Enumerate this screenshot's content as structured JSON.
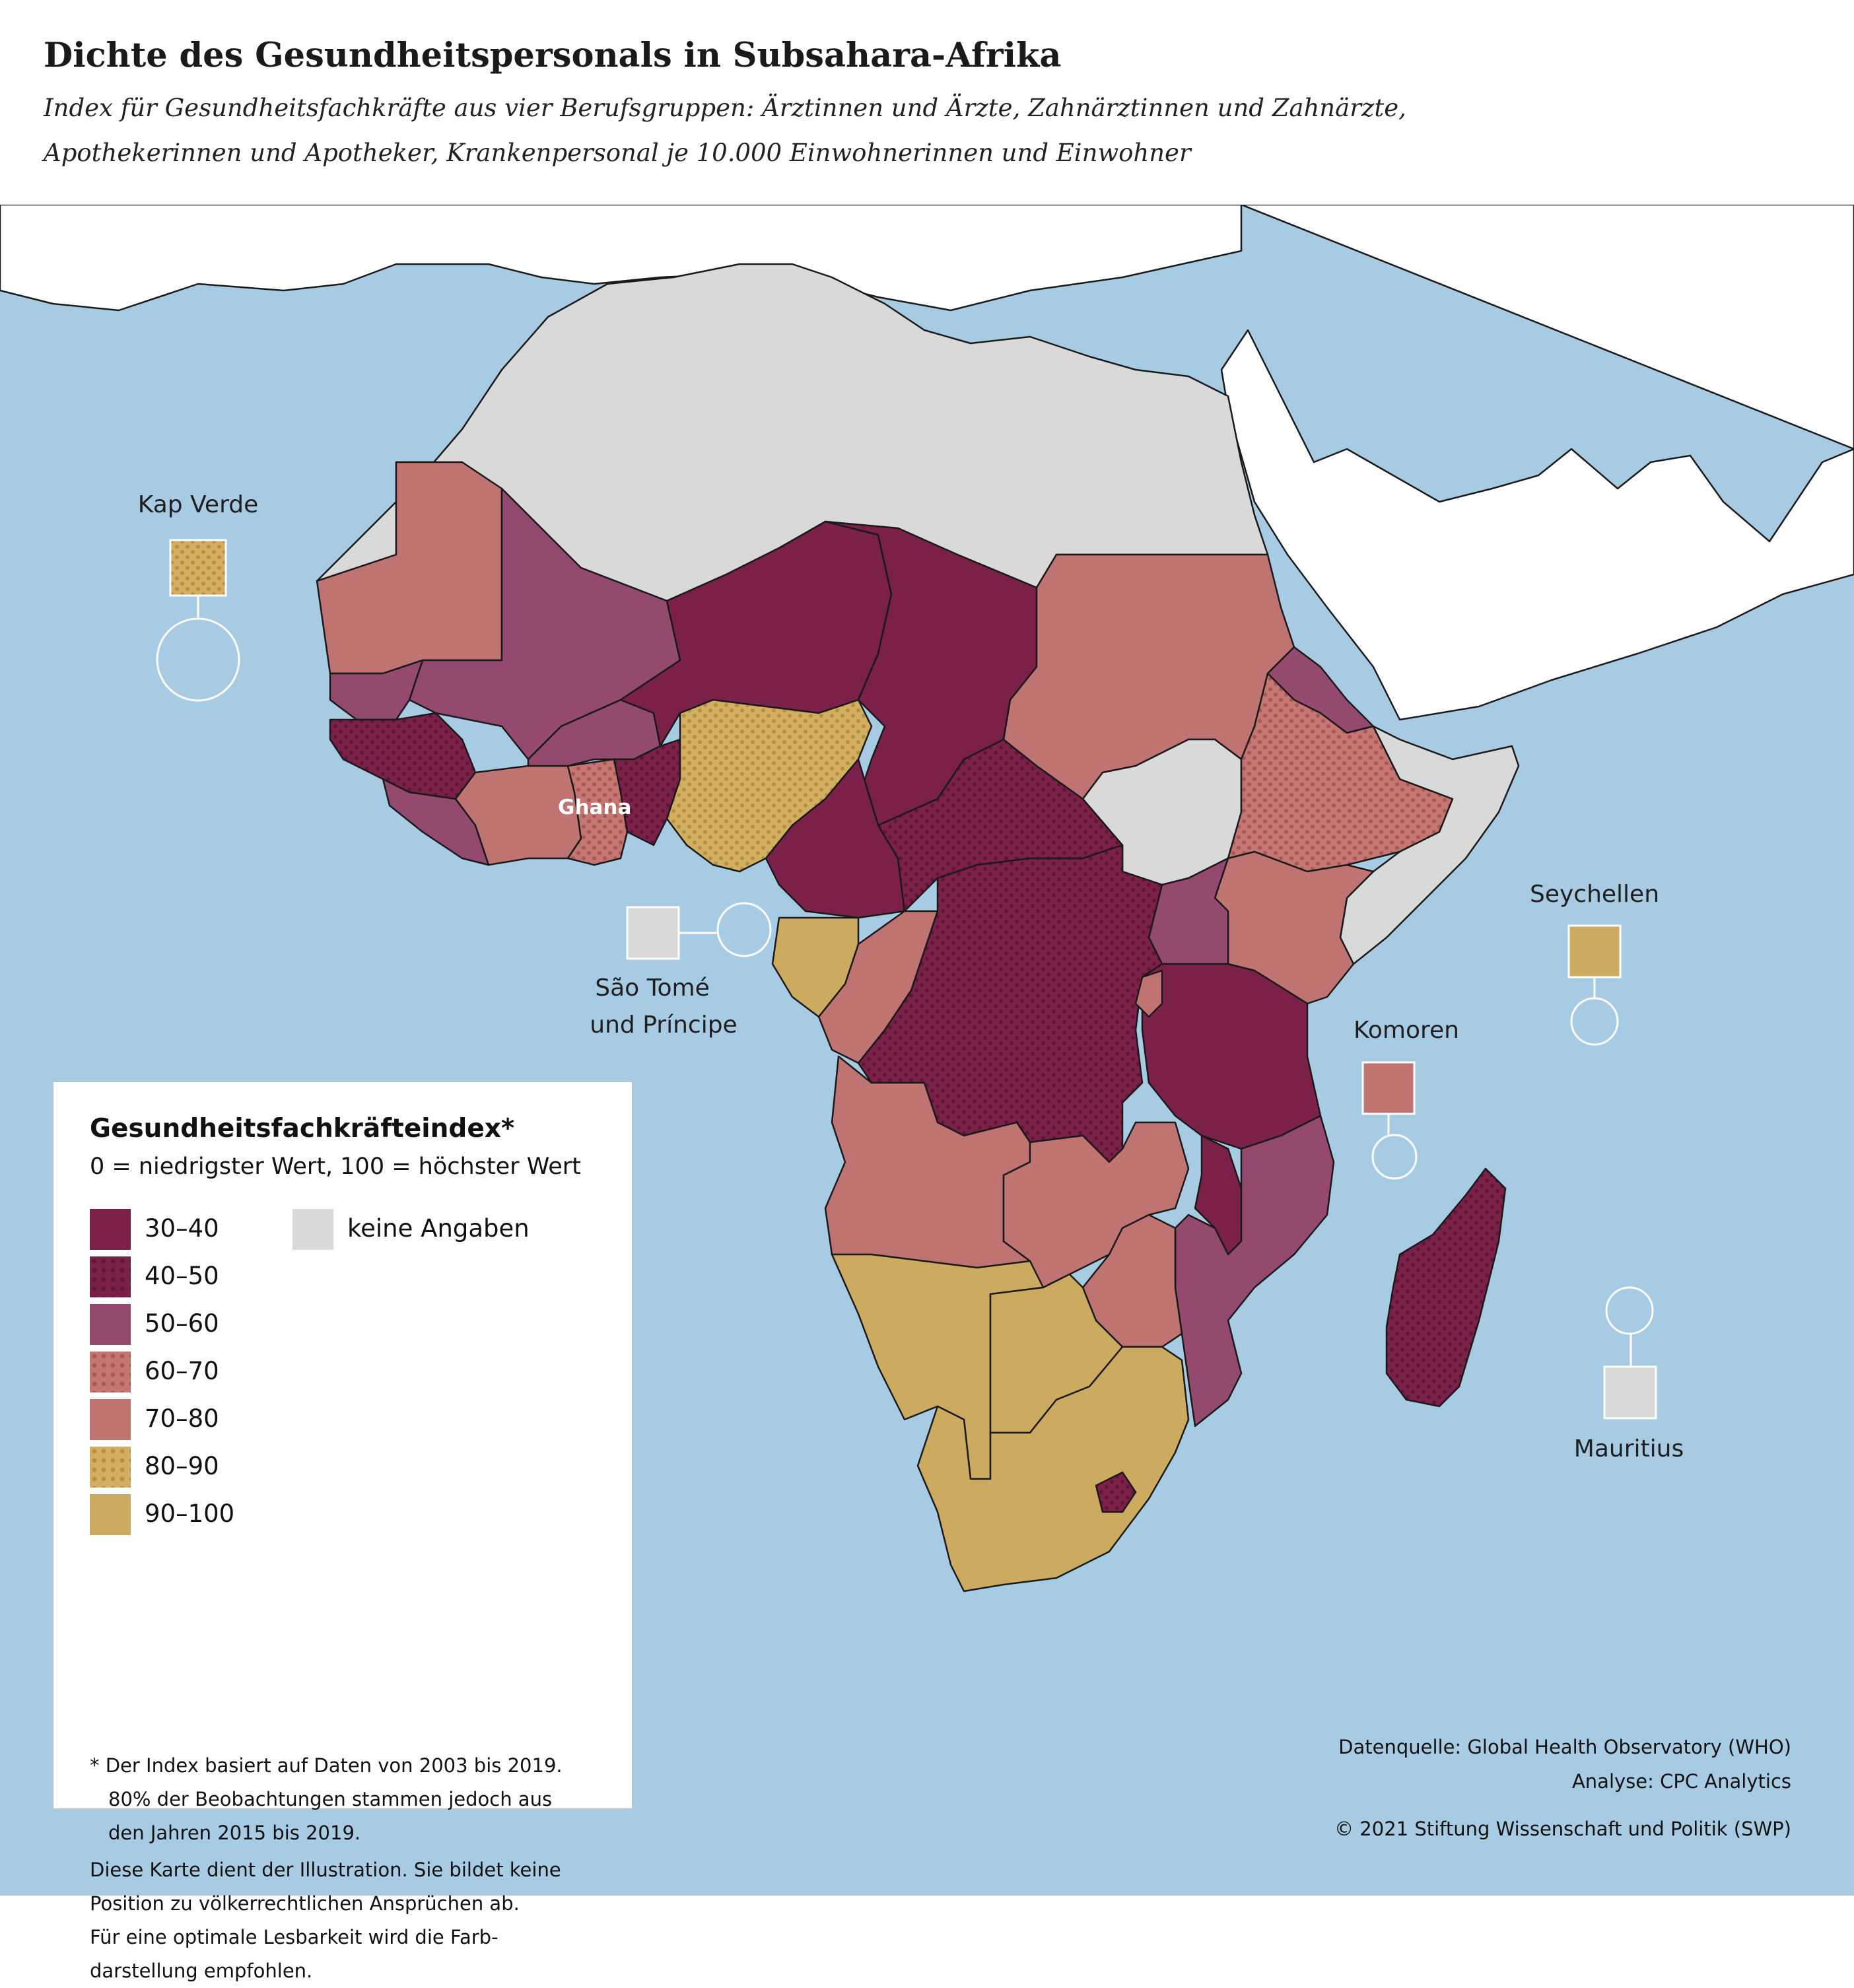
{
  "header": {
    "title": "Dichte des Gesundheitspersonals in Subsahara-Afrika",
    "subtitle_line1": "Index für Gesundheitsfachkräfte aus vier Berufsgruppen: Ärztinnen und Ärzte, Zahnärztinnen und Zahnärzte,",
    "subtitle_line2": "Apothekerinnen und Apotheker, Krankenpersonal je 10.000 Einwohnerinnen und Einwohner"
  },
  "map": {
    "labels": {
      "kap_verde": "Kap Verde",
      "ghana": "Ghana",
      "sao_tome_1": "São Tomé",
      "sao_tome_2": "und Príncipe",
      "seychellen": "Seychellen",
      "komoren": "Komoren",
      "mauritius": "Mauritius"
    }
  },
  "colors": {
    "sea": "#a8cbe4",
    "no_data": "#d9d9d9",
    "outside_region": "#ffffff",
    "c30_40": "#7b2049",
    "c40_50": "#7b2049",
    "c50_60": "#944a6e",
    "c60_70": "#c07472",
    "c70_80": "#c07472",
    "c80_90": "#ccaa5f",
    "c90_100": "#ccaa5f"
  },
  "legend": {
    "title": "Gesundheitsfachkräfteindex*",
    "subtitle": "0 = niedrigster Wert, 100 = höchster Wert",
    "items": [
      {
        "label": "30–40",
        "color": "#7b2049",
        "dotted": false
      },
      {
        "label": "40–50",
        "color": "#7b2049",
        "dotted": true
      },
      {
        "label": "50–60",
        "color": "#944a6e",
        "dotted": false
      },
      {
        "label": "60–70",
        "color": "#c07472",
        "dotted": true
      },
      {
        "label": "70–80",
        "color": "#c07472",
        "dotted": false
      },
      {
        "label": "80–90",
        "color": "#ccaa5f",
        "dotted": true
      },
      {
        "label": "90–100",
        "color": "#ccaa5f",
        "dotted": false
      }
    ],
    "no_data_label": "keine Angaben",
    "footnote_1": "* Der Index basiert auf Daten von 2003 bis 2019.",
    "footnote_2": "80% der Beobachtungen stammen jedoch aus",
    "footnote_3": "den Jahren 2015 bis 2019.",
    "disclaimer_1": "Diese Karte dient der Illustration. Sie bildet keine",
    "disclaimer_2": "Position zu völkerrechtlichen Ansprüchen ab.",
    "disclaimer_3": "Für eine optimale Lesbarkeit wird die Farb-",
    "disclaimer_4": "darstellung empfohlen."
  },
  "credits": {
    "source": "Datenquelle: Global Health Observatory (WHO)",
    "analysis": "Analyse: CPC Analytics",
    "copyright": "© 2021 Stiftung Wissenschaft und Politik (SWP)"
  }
}
